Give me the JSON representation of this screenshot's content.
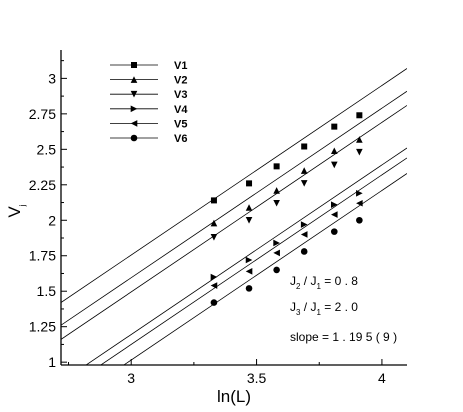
{
  "chart_data": {
    "type": "scatter",
    "title": "",
    "xlabel": "ln(L)",
    "ylabel": "V",
    "ylabel_sub": "j",
    "xlim": [
      2.72,
      4.1
    ],
    "ylim": [
      0.98,
      3.2
    ],
    "xticks": [
      3,
      3.5,
      4
    ],
    "xtick_labels": [
      "3",
      "3.5",
      "4"
    ],
    "yticks": [
      1,
      1.25,
      1.5,
      1.75,
      2,
      2.25,
      2.5,
      2.75,
      3
    ],
    "ytick_labels": [
      "1",
      "1.25",
      "1.5",
      "1.75",
      "2",
      "2.25",
      "2.5",
      "2.75",
      "3"
    ],
    "slope": 1.195,
    "fit_line_x_range": [
      2.72,
      4.1
    ],
    "legend_placement": "top-left",
    "series": [
      {
        "name": "V1",
        "marker": "square",
        "x": [
          3.33,
          3.47,
          3.58,
          3.69,
          3.81,
          3.91
        ],
        "y": [
          2.14,
          2.26,
          2.38,
          2.52,
          2.66,
          2.74
        ],
        "line_intercept": -1.83
      },
      {
        "name": "V2",
        "marker": "triangle-up",
        "x": [
          3.33,
          3.47,
          3.58,
          3.69,
          3.81,
          3.91
        ],
        "y": [
          1.98,
          2.09,
          2.21,
          2.35,
          2.49,
          2.57
        ],
        "line_intercept": -1.99
      },
      {
        "name": "V3",
        "marker": "triangle-down",
        "x": [
          3.33,
          3.47,
          3.58,
          3.69,
          3.81,
          3.91
        ],
        "y": [
          1.88,
          2.0,
          2.12,
          2.26,
          2.39,
          2.48
        ],
        "line_intercept": -2.09
      },
      {
        "name": "V4",
        "marker": "triangle-right",
        "x": [
          3.33,
          3.47,
          3.58,
          3.69,
          3.81,
          3.91
        ],
        "y": [
          1.6,
          1.72,
          1.84,
          1.97,
          2.11,
          2.19
        ],
        "line_intercept": -2.39
      },
      {
        "name": "V5",
        "marker": "triangle-left",
        "x": [
          3.33,
          3.47,
          3.58,
          3.69,
          3.81,
          3.91
        ],
        "y": [
          1.54,
          1.64,
          1.77,
          1.9,
          2.04,
          2.12
        ],
        "line_intercept": -2.46
      },
      {
        "name": "V6",
        "marker": "circle",
        "x": [
          3.33,
          3.47,
          3.58,
          3.69,
          3.81,
          3.91
        ],
        "y": [
          1.42,
          1.52,
          1.65,
          1.78,
          1.92,
          2.0
        ],
        "line_intercept": -2.57
      }
    ],
    "annotations": {
      "ratio1": {
        "j_top": "J",
        "top_sub": "2",
        "sep": " / ",
        "j_bot": "J",
        "bot_sub": "1",
        "value": " = 0 . 8"
      },
      "ratio2": {
        "j_top": "J",
        "top_sub": "3",
        "sep": " / ",
        "j_bot": "J",
        "bot_sub": "1",
        "value": " = 2 . 0"
      },
      "slope_text": "slope = 1 . 19 5 ( 9 )"
    }
  }
}
